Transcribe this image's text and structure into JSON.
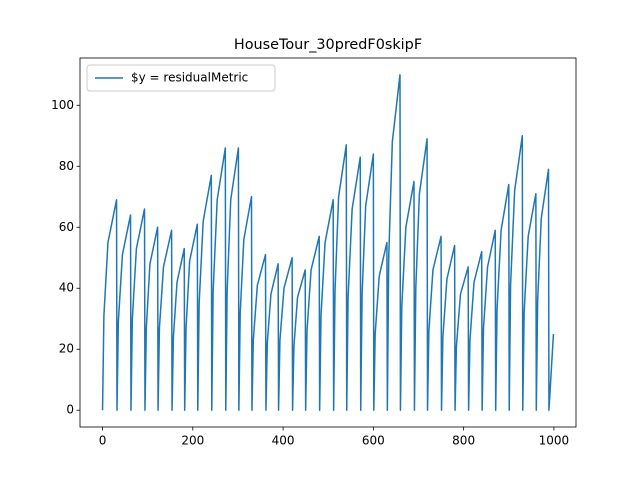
{
  "chart_data": {
    "type": "line",
    "title": "HouseTour_30predF0skipF",
    "series": [
      {
        "name": "$y = residualMetric",
        "color": "#1f77b4",
        "x": [
          0,
          3,
          12,
          31,
          32,
          35,
          44,
          62,
          63,
          66,
          75,
          93,
          94,
          97,
          105,
          122,
          123,
          126,
          135,
          153,
          154,
          157,
          165,
          181,
          182,
          185,
          193,
          210,
          211,
          214,
          223,
          241,
          242,
          245,
          254,
          272,
          273,
          276,
          284,
          301,
          302,
          305,
          313,
          330,
          331,
          334,
          343,
          361,
          362,
          365,
          373,
          389,
          390,
          393,
          402,
          420,
          421,
          424,
          432,
          449,
          450,
          453,
          462,
          480,
          481,
          484,
          493,
          511,
          512,
          515,
          523,
          540,
          541,
          544,
          553,
          571,
          572,
          575,
          583,
          600,
          601,
          604,
          613,
          630,
          631,
          634,
          642,
          659,
          660,
          663,
          672,
          690,
          691,
          694,
          702,
          719,
          720,
          723,
          732,
          750,
          751,
          754,
          763,
          780,
          781,
          784,
          793,
          810,
          811,
          814,
          823,
          840,
          841,
          844,
          853,
          870,
          871,
          874,
          883,
          900,
          901,
          904,
          913,
          930,
          931,
          934,
          943,
          960,
          961,
          964,
          972,
          988,
          989,
          999
        ],
        "values": [
          0,
          31,
          55,
          69,
          0,
          29,
          51,
          64,
          0,
          30,
          53,
          66,
          0,
          27,
          48,
          60,
          0,
          27,
          47,
          59,
          0,
          24,
          42,
          53,
          0,
          27,
          49,
          61,
          0,
          35,
          62,
          77,
          0,
          39,
          69,
          86,
          0,
          39,
          69,
          86,
          0,
          32,
          56,
          70,
          0,
          23,
          41,
          51,
          0,
          22,
          38,
          48,
          0,
          23,
          40,
          50,
          0,
          21,
          37,
          46,
          0,
          26,
          46,
          57,
          0,
          31,
          55,
          69,
          0,
          39,
          70,
          87,
          0,
          37,
          66,
          83,
          0,
          38,
          67,
          84,
          0,
          25,
          44,
          55,
          0,
          50,
          88,
          110,
          0,
          34,
          60,
          75,
          0,
          40,
          71,
          89,
          0,
          26,
          46,
          57,
          0,
          24,
          43,
          54,
          0,
          21,
          38,
          47,
          0,
          23,
          42,
          52,
          0,
          27,
          47,
          59,
          0,
          33,
          59,
          74,
          0,
          41,
          72,
          90,
          0,
          32,
          57,
          71,
          0,
          36,
          63,
          79,
          0,
          25
        ]
      }
    ],
    "xlim": [
      -49.95,
      1048.95
    ],
    "ylim": [
      -5.5,
      115.5
    ],
    "xticks": [
      0,
      200,
      400,
      600,
      800,
      1000
    ],
    "yticks": [
      0,
      20,
      40,
      60,
      80,
      100
    ],
    "legend": "upper left"
  }
}
